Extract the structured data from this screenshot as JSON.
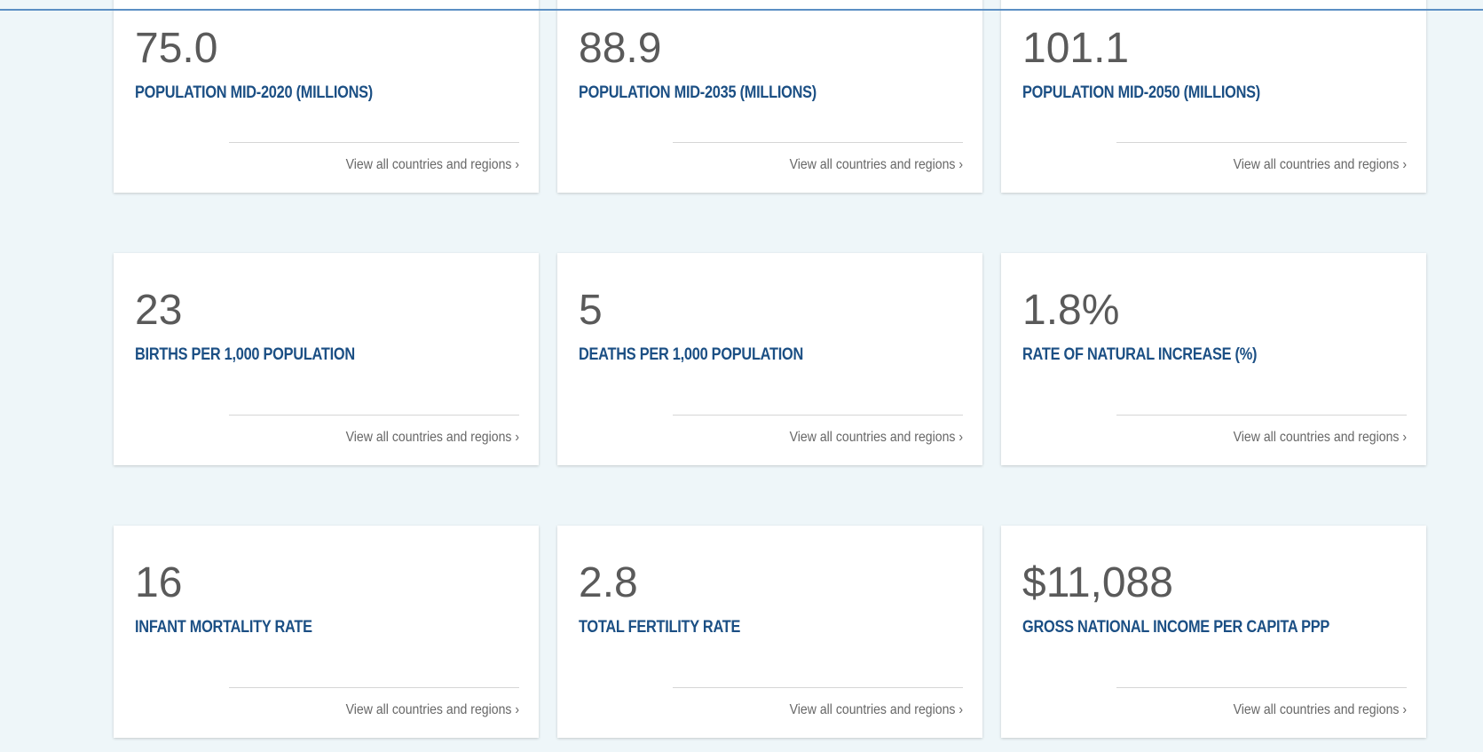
{
  "cards": [
    {
      "value": "75.0",
      "label": "POPULATION MID-2020 (MILLIONS)",
      "link": "View all countries and regions ›"
    },
    {
      "value": "88.9",
      "label": "POPULATION MID-2035 (MILLIONS)",
      "link": "View all countries and regions ›"
    },
    {
      "value": "101.1",
      "label": "POPULATION MID-2050 (MILLIONS)",
      "link": "View all countries and regions ›"
    },
    {
      "value": "23",
      "label": "BIRTHS PER 1,000 POPULATION",
      "link": "View all countries and regions ›"
    },
    {
      "value": "5",
      "label": "DEATHS PER 1,000 POPULATION",
      "link": "View all countries and regions ›"
    },
    {
      "value": "1.8%",
      "label": "RATE OF NATURAL INCREASE (%)",
      "link": "View all countries and regions ›"
    },
    {
      "value": "16",
      "label": "INFANT MORTALITY RATE",
      "link": "View all countries and regions ›"
    },
    {
      "value": "2.8",
      "label": "TOTAL FERTILITY RATE",
      "link": "View all countries and regions ›"
    },
    {
      "value": "$11,088",
      "label": "GROSS NATIONAL INCOME PER CAPITA PPP",
      "link": "View all countries and regions ›"
    }
  ]
}
